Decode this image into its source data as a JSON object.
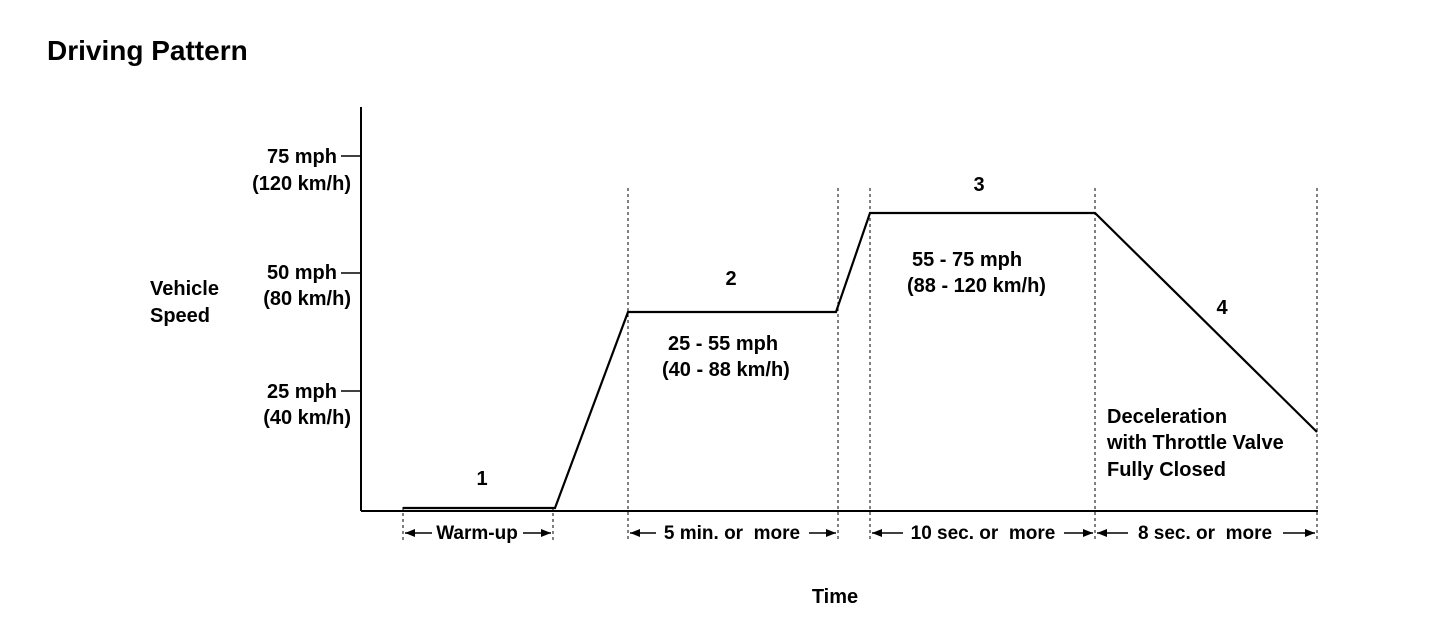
{
  "title": "Driving Pattern",
  "axes": {
    "y_label": [
      "Vehicle",
      "Speed"
    ],
    "x_label": "Time"
  },
  "y_ticks": [
    {
      "mph": "75 mph",
      "kmh": "(120 km/h)"
    },
    {
      "mph": "50 mph",
      "kmh": "(80 km/h)"
    },
    {
      "mph": "25 mph",
      "kmh": "(40 km/h)"
    }
  ],
  "phases": [
    {
      "number": "1",
      "duration": "Warm-up"
    },
    {
      "number": "2",
      "duration": "5 min. or  more",
      "speed": [
        "25 - 55 mph",
        "(40 - 88 km/h)"
      ]
    },
    {
      "number": "3",
      "duration": "10 sec. or  more",
      "speed": [
        "55 - 75 mph",
        "(88 - 120 km/h)"
      ]
    },
    {
      "number": "4",
      "duration": "8 sec. or  more",
      "note": [
        "Deceleration",
        "with Throttle Valve",
        "Fully Closed"
      ]
    }
  ]
}
